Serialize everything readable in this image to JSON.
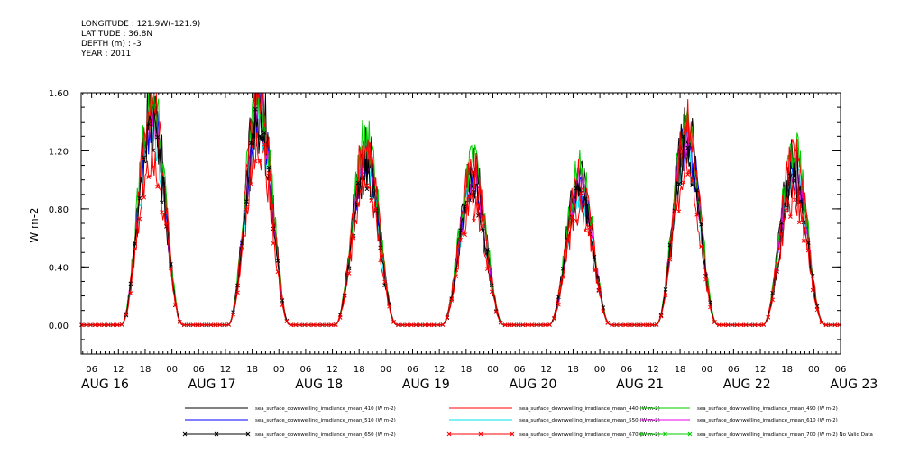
{
  "header": {
    "longitude": "LONGITUDE : 121.9W(-121.9)",
    "latitude": "LATITUDE : 36.8N",
    "depth": "DEPTH (m) : -3",
    "year": "YEAR : 2011"
  },
  "chart_data": {
    "type": "line",
    "ylabel": "W m-2",
    "ylim": [
      -0.2,
      1.6
    ],
    "xlim_hours": [
      0,
      174
    ],
    "yticks": [
      "1.60",
      "1.20",
      "0.80",
      "0.40",
      "0.00"
    ],
    "ytick_values": [
      1.6,
      1.2,
      0.8,
      0.4,
      0.0
    ],
    "hour_ticks": [
      "06",
      "12",
      "18",
      "00",
      "06",
      "12",
      "18",
      "00",
      "06",
      "12",
      "18",
      "00",
      "06",
      "12",
      "18",
      "00",
      "06",
      "12",
      "18",
      "00",
      "06",
      "12",
      "18",
      "00",
      "06",
      "12",
      "18",
      "00",
      "06",
      "12",
      "18",
      "00"
    ],
    "date_labels": [
      "AUG 16",
      "AUG 17",
      "AUG 18",
      "AUG 19",
      "AUG 20",
      "AUG 21",
      "AUG 22",
      "AUG 23"
    ],
    "daily_peaks": {
      "hours_from_aug16_00": [
        19.5,
        43.5,
        67.5,
        91.5,
        115.5,
        139.5,
        163.5
      ],
      "values": [
        1.53,
        1.58,
        1.24,
        1.07,
        1.02,
        1.38,
        1.16
      ]
    },
    "series_scale": [
      0.9,
      0.93,
      0.95,
      1.0,
      1.03,
      1.0,
      0.85,
      0.78
    ],
    "series": [
      {
        "name": "sea_surface_downwelling_irradiance_mean_410 (W m-2)",
        "color": "#000000",
        "marker": ""
      },
      {
        "name": "sea_surface_downwelling_irradiance_mean_440 (W m-2)",
        "color": "#ff0000",
        "marker": ""
      },
      {
        "name": "sea_surface_downwelling_irradiance_mean_490 (W m-2)",
        "color": "#00cc00",
        "marker": ""
      },
      {
        "name": "sea_surface_downwelling_irradiance_mean_510 (W m-2)",
        "color": "#0000ff",
        "marker": ""
      },
      {
        "name": "sea_surface_downwelling_irradiance_mean_550 (W m-2)",
        "color": "#00e5ee",
        "marker": ""
      },
      {
        "name": "sea_surface_downwelling_irradiance_mean_610 (W m-2)",
        "color": "#ee00ee",
        "marker": ""
      },
      {
        "name": "sea_surface_downwelling_irradiance_mean_650 (W m-2)",
        "color": "#000000",
        "marker": "x"
      },
      {
        "name": "sea_surface_downwelling_irradiance_mean_670 (W m-2)",
        "color": "#ff0000",
        "marker": "x"
      },
      {
        "name": "sea_surface_downwelling_irradiance_mean_700 (W m-2) No Valid Data",
        "color": "#00cc00",
        "marker": "x"
      }
    ],
    "grid": false,
    "legend_position": "bottom"
  }
}
